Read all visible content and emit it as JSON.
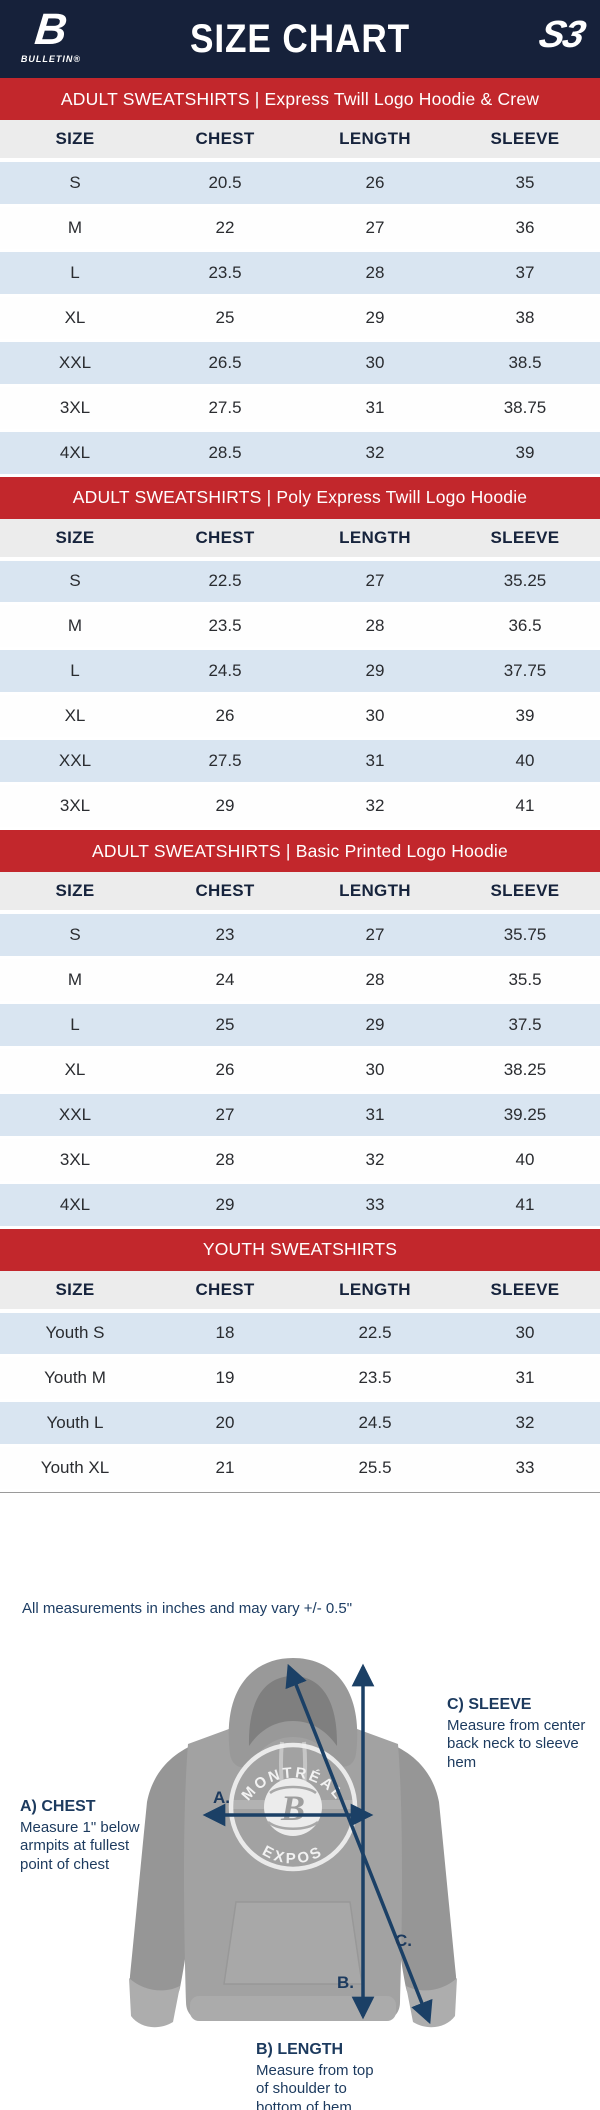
{
  "header": {
    "title": "SIZE CHART",
    "left_logo_glyph": "B",
    "left_logo_text": "BULLETIN®",
    "right_logo_text": "S3"
  },
  "columns": [
    "SIZE",
    "CHEST",
    "LENGTH",
    "SLEEVE"
  ],
  "sections": [
    {
      "banner": "ADULT SWEATSHIRTS | Express Twill Logo Hoodie & Crew",
      "rows": [
        [
          "S",
          "20.5",
          "26",
          "35"
        ],
        [
          "M",
          "22",
          "27",
          "36"
        ],
        [
          "L",
          "23.5",
          "28",
          "37"
        ],
        [
          "XL",
          "25",
          "29",
          "38"
        ],
        [
          "XXL",
          "26.5",
          "30",
          "38.5"
        ],
        [
          "3XL",
          "27.5",
          "31",
          "38.75"
        ],
        [
          "4XL",
          "28.5",
          "32",
          "39"
        ]
      ]
    },
    {
      "banner": "ADULT SWEATSHIRTS | Poly Express Twill Logo Hoodie",
      "rows": [
        [
          "S",
          "22.5",
          "27",
          "35.25"
        ],
        [
          "M",
          "23.5",
          "28",
          "36.5"
        ],
        [
          "L",
          "24.5",
          "29",
          "37.75"
        ],
        [
          "XL",
          "26",
          "30",
          "39"
        ],
        [
          "XXL",
          "27.5",
          "31",
          "40"
        ],
        [
          "3XL",
          "29",
          "32",
          "41"
        ]
      ]
    },
    {
      "banner": "ADULT SWEATSHIRTS | Basic Printed Logo Hoodie",
      "rows": [
        [
          "S",
          "23",
          "27",
          "35.75"
        ],
        [
          "M",
          "24",
          "28",
          "35.5"
        ],
        [
          "L",
          "25",
          "29",
          "37.5"
        ],
        [
          "XL",
          "26",
          "30",
          "38.25"
        ],
        [
          "XXL",
          "27",
          "31",
          "39.25"
        ],
        [
          "3XL",
          "28",
          "32",
          "40"
        ],
        [
          "4XL",
          "29",
          "33",
          "41"
        ]
      ]
    },
    {
      "banner": "YOUTH SWEATSHIRTS",
      "rows": [
        [
          "Youth S",
          "18",
          "22.5",
          "30"
        ],
        [
          "Youth M",
          "19",
          "23.5",
          "31"
        ],
        [
          "Youth L",
          "20",
          "24.5",
          "32"
        ],
        [
          "Youth XL",
          "21",
          "25.5",
          "33"
        ]
      ]
    }
  ],
  "note": "All measurements in inches and may vary +/- 0.5\"",
  "diagram": {
    "markers": {
      "a": "A.",
      "b": "B.",
      "c": "C."
    },
    "chest": {
      "title": "A) CHEST",
      "desc": "Measure 1\" below armpits at fullest point of chest"
    },
    "length": {
      "title": "B) LENGTH",
      "desc": "Measure from top of shoulder to bottom of hem"
    },
    "sleeve": {
      "title": "C) SLEEVE",
      "desc": "Measure from center back neck to sleeve hem"
    },
    "shirt_logo": {
      "top": "MONTRÉAL",
      "bottom": "EXPOS"
    }
  },
  "colors": {
    "navy_header": "#16213A",
    "banner_red": "#C2272C",
    "row_blue": "#D9E5F1",
    "column_header_gray": "#ECECEC",
    "diagram_text_navy": "#1C3A5E",
    "arrow_navy": "#1B4066"
  }
}
